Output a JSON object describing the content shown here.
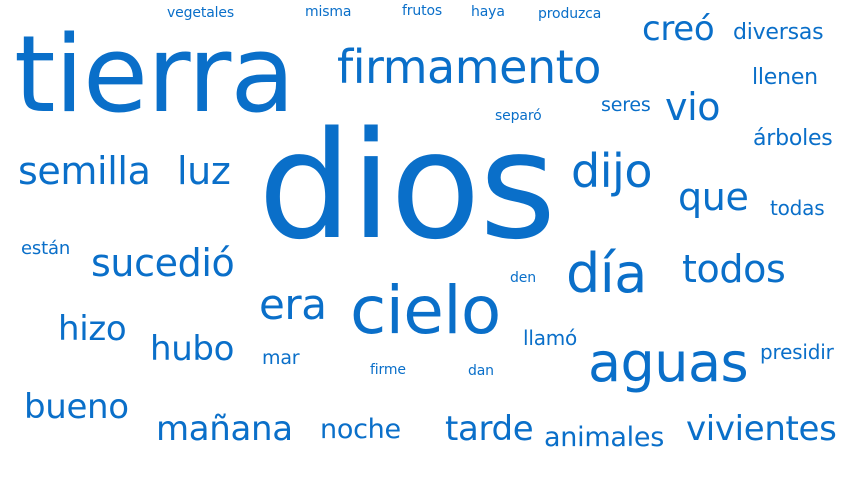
{
  "colors": {
    "word": "#0a6fc9",
    "background": "#ffffff"
  },
  "words": [
    {
      "text": "dios",
      "weight": 100
    },
    {
      "text": "tierra",
      "weight": 72
    },
    {
      "text": "cielo",
      "weight": 48
    },
    {
      "text": "aguas",
      "weight": 44
    },
    {
      "text": "día",
      "weight": 42
    },
    {
      "text": "firmamento",
      "weight": 36
    },
    {
      "text": "dijo",
      "weight": 36
    },
    {
      "text": "era",
      "weight": 34
    },
    {
      "text": "vio",
      "weight": 28
    },
    {
      "text": "semilla",
      "weight": 28
    },
    {
      "text": "luz",
      "weight": 28
    },
    {
      "text": "que",
      "weight": 28
    },
    {
      "text": "todos",
      "weight": 28
    },
    {
      "text": "sucedió",
      "weight": 28
    },
    {
      "text": "creó",
      "weight": 24
    },
    {
      "text": "hizo",
      "weight": 26
    },
    {
      "text": "hubo",
      "weight": 26
    },
    {
      "text": "bueno",
      "weight": 26
    },
    {
      "text": "mañana",
      "weight": 26
    },
    {
      "text": "tarde",
      "weight": 26
    },
    {
      "text": "vivientes",
      "weight": 26
    },
    {
      "text": "noche",
      "weight": 22
    },
    {
      "text": "animales",
      "weight": 22
    },
    {
      "text": "diversas",
      "weight": 15
    },
    {
      "text": "llenen",
      "weight": 15
    },
    {
      "text": "árboles",
      "weight": 15
    },
    {
      "text": "todas",
      "weight": 14
    },
    {
      "text": "presidir",
      "weight": 14
    },
    {
      "text": "llamó",
      "weight": 14
    },
    {
      "text": "seres",
      "weight": 13
    },
    {
      "text": "mar",
      "weight": 13
    },
    {
      "text": "están",
      "weight": 12
    },
    {
      "text": "vegetales",
      "weight": 10
    },
    {
      "text": "misma",
      "weight": 10
    },
    {
      "text": "frutos",
      "weight": 10
    },
    {
      "text": "haya",
      "weight": 10
    },
    {
      "text": "produzca",
      "weight": 10
    },
    {
      "text": "separó",
      "weight": 10
    },
    {
      "text": "den",
      "weight": 10
    },
    {
      "text": "firme",
      "weight": 10
    },
    {
      "text": "dan",
      "weight": 10
    }
  ]
}
